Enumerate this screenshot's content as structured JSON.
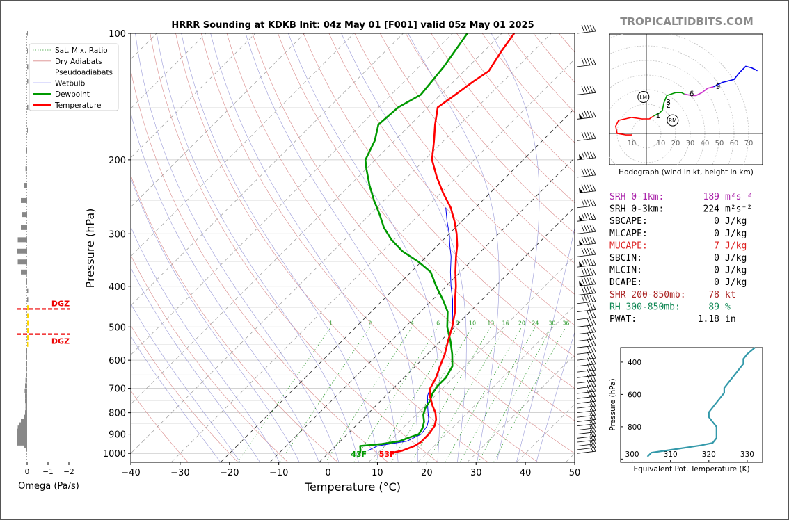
{
  "site_label": "TROPICALTIDBITS.COM",
  "chart_data": [
    {
      "type": "line",
      "name": "skew-t",
      "title": "HRRR Sounding at KDKB Init: 04z May 01 [F001] valid 05z May 01 2025",
      "xlabel": "Temperature (°C)",
      "ylabel": "Pressure (hPa)",
      "xlim": [
        -40,
        50
      ],
      "ylim": [
        1050,
        100
      ],
      "y_scale": "log",
      "x_ticks": [
        -40,
        -30,
        -20,
        -10,
        0,
        10,
        20,
        30,
        40,
        50
      ],
      "x_tick_labels": [
        "−40",
        "−30",
        "−20",
        "−10",
        "0",
        "10",
        "20",
        "30",
        "40",
        "50"
      ],
      "y_ticks": [
        100,
        200,
        300,
        400,
        500,
        600,
        700,
        800,
        900,
        1000
      ],
      "y_tick_labels": [
        "100",
        "200",
        "300",
        "400",
        "500",
        "600",
        "700",
        "800",
        "900",
        "1000"
      ],
      "grid": true,
      "legend_position": "top-left",
      "legend": [
        "Sat. Mix. Ratio",
        "Dry Adiabats",
        "Pseudoadiabats",
        "Wetbulb",
        "Dewpoint",
        "Temperature"
      ],
      "mixing_ratio_labels": [
        "1",
        "2",
        "4",
        "6",
        "8",
        "10",
        "13",
        "16",
        "20",
        "24",
        "30",
        "36"
      ],
      "mixing_ratio_values": [
        1,
        2,
        4,
        6,
        8,
        10,
        13,
        16,
        20,
        24,
        30,
        36
      ],
      "series": [
        {
          "name": "Temperature",
          "color": "#ff0000",
          "p": [
            1000,
            985,
            960,
            940,
            900,
            860,
            830,
            800,
            770,
            730,
            700,
            660,
            620,
            580,
            540,
            500,
            460,
            430,
            400,
            370,
            340,
            320,
            300,
            280,
            260,
            240,
            220,
            200,
            180,
            165,
            150,
            140,
            130,
            123,
            110,
            100
          ],
          "t": [
            12.5,
            14.5,
            16.0,
            16.5,
            16.5,
            16.0,
            15.0,
            13.5,
            11.5,
            9.0,
            7.5,
            6.5,
            5.0,
            3.5,
            1.5,
            -0.5,
            -3.0,
            -5.5,
            -8.0,
            -11.0,
            -14.0,
            -16.0,
            -18.5,
            -21.5,
            -25.0,
            -29.5,
            -34.0,
            -38.5,
            -42.0,
            -45.0,
            -48.0,
            -47.0,
            -46.0,
            -45.0,
            -46.5,
            -47.5
          ]
        },
        {
          "name": "Dewpoint",
          "color": "#009900",
          "p": [
            1000,
            985,
            960,
            950,
            935,
            920,
            900,
            870,
            840,
            810,
            780,
            750,
            720,
            690,
            660,
            620,
            580,
            540,
            500,
            460,
            430,
            400,
            370,
            350,
            330,
            310,
            290,
            270,
            250,
            230,
            210,
            200,
            180,
            165,
            150,
            140,
            120,
            100
          ],
          "t": [
            6.5,
            6.0,
            5.0,
            9.0,
            12.0,
            13.0,
            14.5,
            14.0,
            13.0,
            11.5,
            10.5,
            10.0,
            9.0,
            8.5,
            8.5,
            7.5,
            5.0,
            2.0,
            -1.5,
            -4.5,
            -8.0,
            -12.0,
            -16.0,
            -20.5,
            -26.0,
            -30.5,
            -34.5,
            -38.0,
            -42.0,
            -46.0,
            -50.0,
            -52.0,
            -54.0,
            -56.5,
            -56.0,
            -54.0,
            -55.0,
            -57.0
          ]
        },
        {
          "name": "Wetbulb",
          "color": "#0000ee",
          "p": [
            985,
            960,
            935,
            900,
            860,
            830,
            800,
            770,
            730,
            700,
            660,
            620,
            580,
            540,
            500,
            460,
            430,
            400,
            370,
            340,
            320,
            300,
            280,
            260
          ],
          "t": [
            7.5,
            8.5,
            13.5,
            15.0,
            14.5,
            13.5,
            12.0,
            10.5,
            8.5,
            7.5,
            6.5,
            5.0,
            3.5,
            1.5,
            -0.5,
            -3.5,
            -6.0,
            -9.0,
            -12.0,
            -15.0,
            -17.5,
            -20.0,
            -23.0,
            -26.0
          ]
        }
      ],
      "annotations": [
        "43F",
        "53F"
      ]
    },
    {
      "type": "bar",
      "name": "omega",
      "xlabel": "Omega (Pa/s)",
      "x_ticks": [
        0,
        -1,
        -2
      ],
      "x_tick_labels": [
        "0",
        "−1",
        "−2"
      ],
      "dgz_label": "DGZ",
      "dgz_top_hpa": 453,
      "dgz_bottom_hpa": 520,
      "p": [
        975,
        960,
        945,
        930,
        915,
        900,
        885,
        870,
        855,
        840,
        820,
        800,
        785,
        770,
        750,
        730,
        710,
        690,
        670,
        650,
        630,
        610,
        590,
        570,
        550,
        530,
        510,
        490,
        470,
        450,
        430,
        410,
        390,
        370,
        350,
        330,
        310,
        290,
        270,
        250,
        230,
        210,
        190,
        170,
        150,
        130,
        120,
        110,
        100
      ],
      "values": [
        0.05,
        0.15,
        0.5,
        0.5,
        0.5,
        0.5,
        0.5,
        0.45,
        0.4,
        0.3,
        0.15,
        0.1,
        0.08,
        0.08,
        0.1,
        0.1,
        0.12,
        0.1,
        0.08,
        0.06,
        0.05,
        0.05,
        0.04,
        0.05,
        -0.05,
        -0.1,
        -0.1,
        -0.1,
        -0.1,
        -0.08,
        -0.05,
        -0.05,
        0.05,
        0.3,
        0.45,
        0.5,
        0.45,
        0.3,
        0.25,
        0.3,
        0.15,
        0.08,
        0.05,
        -0.02,
        -0.05,
        -0.05,
        -0.05,
        0.0,
        -0.02
      ]
    },
    {
      "type": "line",
      "name": "hodograph",
      "xlabel": "Hodograph (wind in kt, height in km)",
      "ring_labels": [
        "10",
        "20",
        "30",
        "40",
        "50",
        "60",
        "70"
      ],
      "left_label": "10",
      "storm_motion_labels": [
        "LM",
        "RM"
      ],
      "height_labels": [
        "1",
        "2",
        "3",
        "6",
        "9"
      ],
      "segments": [
        {
          "color": "#ff0000",
          "u": [
            -10,
            -14,
            -20,
            -21,
            -19,
            -10,
            -3,
            2,
            5
          ],
          "v": [
            -1,
            -1,
            0,
            5,
            9,
            11,
            10,
            10,
            12
          ]
        },
        {
          "color": "#009900",
          "u": [
            5,
            9,
            11,
            12,
            14,
            20,
            24,
            26
          ],
          "v": [
            12,
            14,
            16,
            21,
            26,
            28,
            28,
            27
          ]
        },
        {
          "color": "#cc33cc",
          "u": [
            26,
            31,
            34,
            38,
            42,
            46
          ],
          "v": [
            27,
            26,
            26,
            28,
            31,
            32
          ]
        },
        {
          "color": "#0000ee",
          "u": [
            46,
            52,
            60,
            64,
            68,
            72,
            76
          ],
          "v": [
            32,
            35,
            37,
            42,
            46,
            45,
            43
          ]
        }
      ],
      "height_points": [
        {
          "label": "1",
          "u": 5,
          "v": 12
        },
        {
          "label": "2",
          "u": 12,
          "v": 19
        },
        {
          "label": "3",
          "u": 12,
          "v": 21
        },
        {
          "label": "6",
          "u": 28,
          "v": 27
        },
        {
          "label": "9",
          "u": 46,
          "v": 32
        }
      ],
      "lm": {
        "u": -2,
        "v": 25
      },
      "rm": {
        "u": 18,
        "v": 9
      }
    },
    {
      "type": "line",
      "name": "theta-e",
      "xlabel": "Equivalent Pot. Temperature (K)",
      "ylabel": "Pressure (hPa)",
      "xlim": [
        297,
        334
      ],
      "ylim": [
        1020,
        310
      ],
      "x_ticks": [
        300,
        310,
        320,
        330
      ],
      "x_tick_labels": [
        "300",
        "310",
        "320",
        "330"
      ],
      "y_ticks": [
        400,
        600,
        800,
        1000
      ],
      "y_tick_labels": [
        "400",
        "600",
        "800",
        ""
      ],
      "color": "#3399aa",
      "p": [
        985,
        960,
        940,
        915,
        900,
        870,
        830,
        800,
        770,
        740,
        710,
        680,
        650,
        620,
        590,
        560,
        530,
        500,
        470,
        440,
        410,
        380,
        350,
        330,
        310
      ],
      "values": [
        304,
        305,
        311,
        318,
        321,
        322,
        322,
        322,
        321,
        320,
        320,
        321,
        322,
        323,
        324,
        324,
        325,
        326,
        327,
        328,
        329,
        329,
        330,
        331,
        332
      ]
    }
  ],
  "indices": [
    {
      "label": "SRH 0-1km:",
      "value": "189",
      "unit": "m²s⁻²",
      "color": "#aa22aa"
    },
    {
      "label": "SRH 0-3km:",
      "value": "224",
      "unit": "m²s⁻²",
      "color": "#000000"
    },
    {
      "label": "SBCAPE:",
      "value": "0",
      "unit": "J/kg",
      "color": "#000000"
    },
    {
      "label": "MLCAPE:",
      "value": "0",
      "unit": "J/kg",
      "color": "#000000"
    },
    {
      "label": "MUCAPE:",
      "value": "7",
      "unit": "J/kg",
      "color": "#dd2222"
    },
    {
      "label": "SBCIN:",
      "value": "0",
      "unit": "J/kg",
      "color": "#000000"
    },
    {
      "label": "MLCIN:",
      "value": "0",
      "unit": "J/kg",
      "color": "#000000"
    },
    {
      "label": "DCAPE:",
      "value": "0",
      "unit": "J/kg",
      "color": "#000000"
    },
    {
      "label": "SHR 200-850mb:",
      "value": "78",
      "unit": "kt",
      "color": "#aa2222"
    },
    {
      "label": "RH 300-850mb:",
      "value": "89",
      "unit": "%",
      "color": "#118855"
    },
    {
      "label": "PWAT:",
      "value": "1.18",
      "unit": "in",
      "color": "#000000"
    }
  ]
}
